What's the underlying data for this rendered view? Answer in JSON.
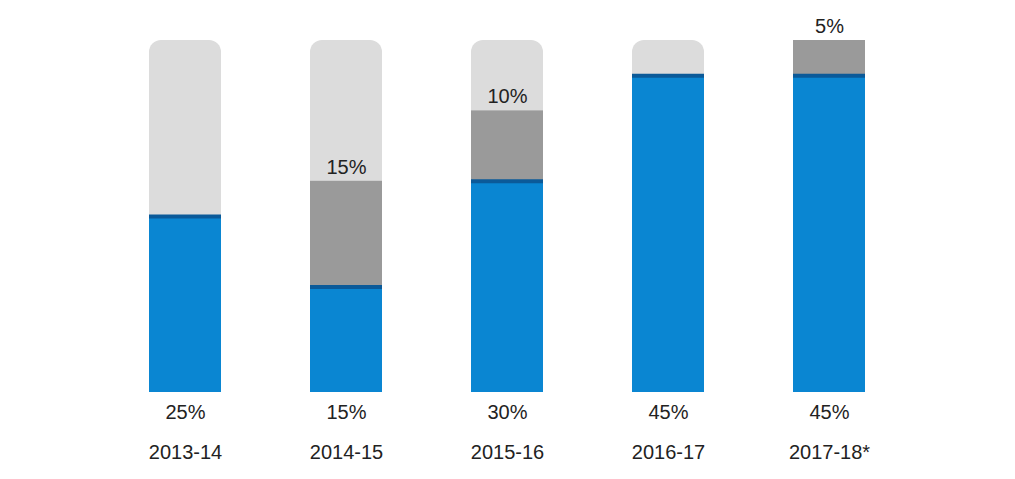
{
  "chart_data": {
    "type": "bar",
    "categories": [
      "2013-14",
      "2014-15",
      "2015-16",
      "2016-17",
      "2017-18*"
    ],
    "series": [
      {
        "color": "#0a86d2",
        "values": [
          25,
          15,
          30,
          45,
          45
        ],
        "value_labels": [
          "25%",
          "15%",
          "30%",
          "45%",
          "45%"
        ]
      },
      {
        "color": "#9a9a9a",
        "values": [
          null,
          15,
          10,
          null,
          5
        ],
        "value_labels": [
          null,
          "15%",
          "10%",
          null,
          "5%"
        ]
      }
    ],
    "ylim": [
      0,
      50
    ],
    "stacked": true,
    "data_labels": true,
    "tick_labels": "x"
  }
}
